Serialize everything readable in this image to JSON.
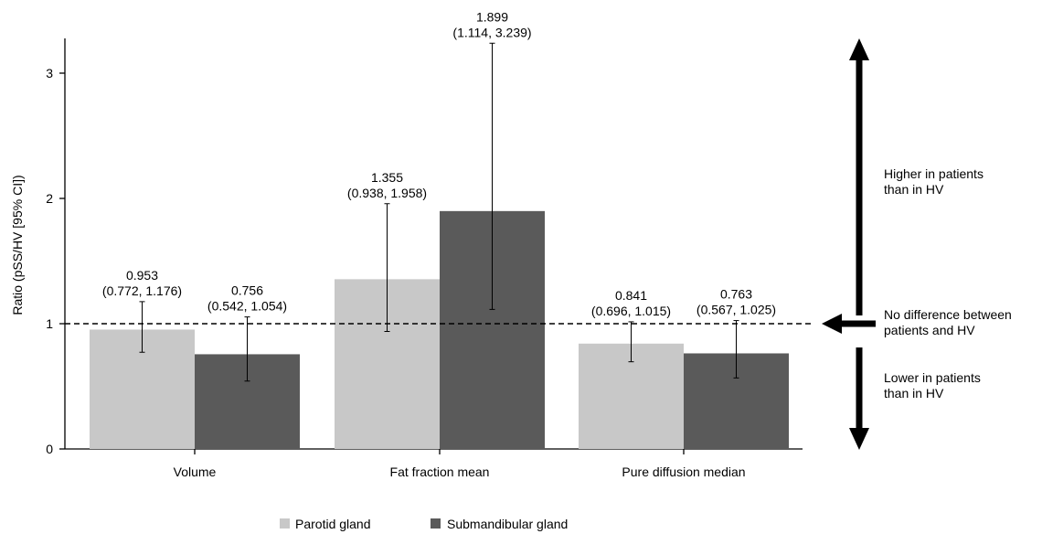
{
  "chart_data": {
    "type": "bar",
    "ylabel": "Ratio (pSS/HV [95% CI])",
    "xlabel": "",
    "ylim": [
      0,
      3.3
    ],
    "yticks": [
      0,
      1,
      2,
      3
    ],
    "reference_line": 1,
    "categories": [
      "Volume",
      "Fat fraction mean",
      "Pure diffusion median"
    ],
    "series": [
      {
        "name": "Parotid gland",
        "color": "#c8c8c8",
        "values": [
          0.953,
          1.355,
          0.841
        ],
        "ci_low": [
          0.772,
          0.938,
          0.696
        ],
        "ci_high": [
          1.176,
          1.958,
          1.015
        ],
        "value_labels": [
          "0.953",
          "1.355",
          "0.841"
        ],
        "ci_labels": [
          "(0.772, 1.176)",
          "(0.938, 1.958)",
          "(0.696, 1.015)"
        ]
      },
      {
        "name": "Submandibular gland",
        "color": "#5a5a5a",
        "values": [
          0.756,
          1.899,
          0.763
        ],
        "ci_low": [
          0.542,
          1.114,
          0.567
        ],
        "ci_high": [
          1.054,
          3.239,
          1.025
        ],
        "value_labels": [
          "0.756",
          "1.899",
          "0.763"
        ],
        "ci_labels": [
          "(0.542, 1.054)",
          "(1.114, 3.239)",
          "(0.567, 1.025)"
        ]
      }
    ],
    "legend_position": "bottom-center",
    "side_annotations": {
      "higher": [
        "Higher in patients",
        "than in HV"
      ],
      "none": [
        "No difference between",
        "patients and HV"
      ],
      "lower": [
        "Lower in patients",
        "than in HV"
      ]
    }
  }
}
